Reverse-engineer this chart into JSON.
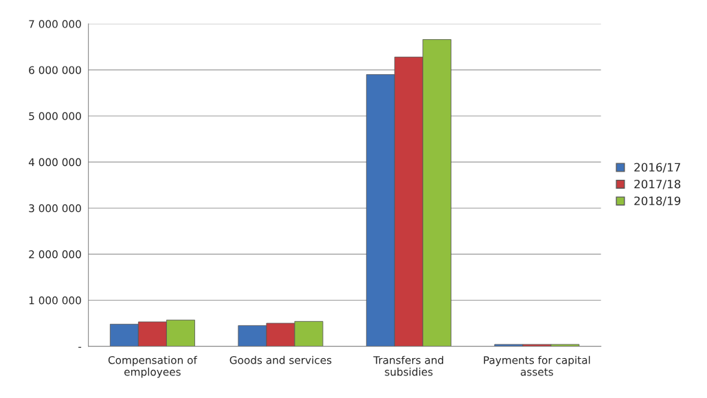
{
  "chart_data": {
    "type": "bar",
    "categories": [
      "Compensation of employees",
      "Goods and services",
      "Transfers and subsidies",
      "Payments for capital assets"
    ],
    "series": [
      {
        "name": "2016/17",
        "color": "#3f72b8",
        "values": [
          480000,
          450000,
          5900000,
          40000
        ]
      },
      {
        "name": "2017/18",
        "color": "#c63c3e",
        "values": [
          530000,
          500000,
          6280000,
          40000
        ]
      },
      {
        "name": "2018/19",
        "color": "#91bf3e",
        "values": [
          570000,
          540000,
          6660000,
          40000
        ]
      }
    ],
    "ylim": [
      0,
      7000000
    ],
    "yticks": [
      {
        "value": 0,
        "label": "-"
      },
      {
        "value": 1000000,
        "label": "1 000 000"
      },
      {
        "value": 2000000,
        "label": "2 000 000"
      },
      {
        "value": 3000000,
        "label": "3 000 000"
      },
      {
        "value": 4000000,
        "label": "4 000 000"
      },
      {
        "value": 5000000,
        "label": "5 000 000"
      },
      {
        "value": 6000000,
        "label": "6 000 000"
      },
      {
        "value": 7000000,
        "label": "7 000 000"
      }
    ],
    "grid": "y",
    "legend": "right"
  }
}
